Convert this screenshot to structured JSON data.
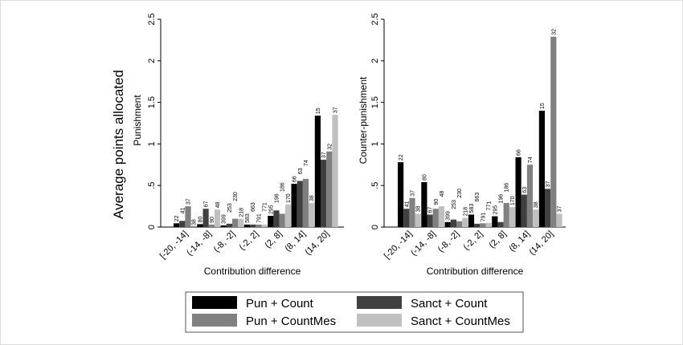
{
  "chart_data": [
    {
      "type": "bar",
      "ylabel": "Punishment",
      "xlabel": "Contribution difference",
      "ylim": [
        0,
        2.5
      ],
      "yticks": [
        "0",
        ".5",
        "1",
        "1.5",
        "2",
        "2.5"
      ],
      "yticks_values": [
        0,
        0.5,
        1,
        1.5,
        2,
        2.5
      ],
      "categories": [
        "[-20, -14]",
        "(-14, -8]",
        "(-8, -2]",
        "(-2, 2]",
        "(2, 8]",
        "(8, 14]",
        "(14, 20]"
      ],
      "series": [
        {
          "name": "Pun + Count",
          "values": [
            0.045,
            0.035,
            0.02,
            0.03,
            0.135,
            0.52,
            1.34
          ],
          "labels": [
            "22",
            "80",
            "399",
            "583",
            "295",
            "66",
            "15"
          ]
        },
        {
          "name": "Sanct + Count",
          "values": [
            0.074,
            0.22,
            0.04,
            0.03,
            0.2,
            0.555,
            0.81
          ],
          "labels": [
            "41",
            "67",
            "253",
            "663",
            "196",
            "63",
            "37"
          ]
        },
        {
          "name": "Pun + CountMes",
          "values": [
            0.25,
            0.03,
            0.1,
            0.03,
            0.16,
            0.58,
            0.91
          ],
          "labels": [
            "37",
            "90",
            "230",
            "791",
            "186",
            "74",
            "32"
          ]
        },
        {
          "name": "Sanct + CountMes",
          "values": [
            0.0,
            0.21,
            0.1,
            0.03,
            0.27,
            0.29,
            1.35
          ],
          "labels": [
            "38",
            "48",
            "218",
            "771",
            "170",
            "38",
            "37"
          ]
        }
      ]
    },
    {
      "type": "bar",
      "ylabel": "Counter-punishment",
      "xlabel": "Contribution difference",
      "ylim": [
        0,
        2.5
      ],
      "yticks": [
        "0",
        ".5",
        "1",
        "1.5",
        "2",
        "2.5"
      ],
      "yticks_values": [
        0,
        0.5,
        1,
        1.5,
        2,
        2.5
      ],
      "categories": [
        "[-20, -14]",
        "(-14, -8]",
        "(-8, -2]",
        "(-2, 2]",
        "(2, 8]",
        "(8, 14]",
        "(14, 20]"
      ],
      "series": [
        {
          "name": "Pun + Count",
          "values": [
            0.78,
            0.54,
            0.06,
            0.15,
            0.13,
            0.84,
            1.4
          ],
          "labels": [
            "22",
            "80",
            "399",
            "583",
            "295",
            "66",
            "15"
          ]
        },
        {
          "name": "Sanct + Count",
          "values": [
            0.22,
            0.15,
            0.09,
            0.04,
            0.06,
            0.39,
            0.46
          ],
          "labels": [
            "41",
            "67",
            "253",
            "663",
            "196",
            "63",
            "37"
          ]
        },
        {
          "name": "Pun + CountMes",
          "values": [
            0.35,
            0.22,
            0.07,
            0.045,
            0.29,
            0.75,
            2.29
          ],
          "labels": [
            "37",
            "90",
            "230",
            "791",
            "186",
            "74",
            "32"
          ]
        },
        {
          "name": "Sanct + CountMes",
          "values": [
            0.16,
            0.25,
            0.11,
            0.05,
            0.24,
            0.21,
            0.16
          ],
          "labels": [
            "38",
            "48",
            "218",
            "771",
            "170",
            "38",
            "37"
          ]
        }
      ]
    }
  ],
  "shared_ylabel": "Average points allocated",
  "legend": {
    "placement": "bottom",
    "items": [
      {
        "label": "Pun + Count",
        "color": "#000000"
      },
      {
        "label": "Sanct + Count",
        "color": "#404040"
      },
      {
        "label": "Pun + CountMes",
        "color": "#808080"
      },
      {
        "label": "Sanct + CountMes",
        "color": "#c0c0c0"
      }
    ]
  },
  "colors": [
    "#000000",
    "#404040",
    "#808080",
    "#c0c0c0"
  ]
}
